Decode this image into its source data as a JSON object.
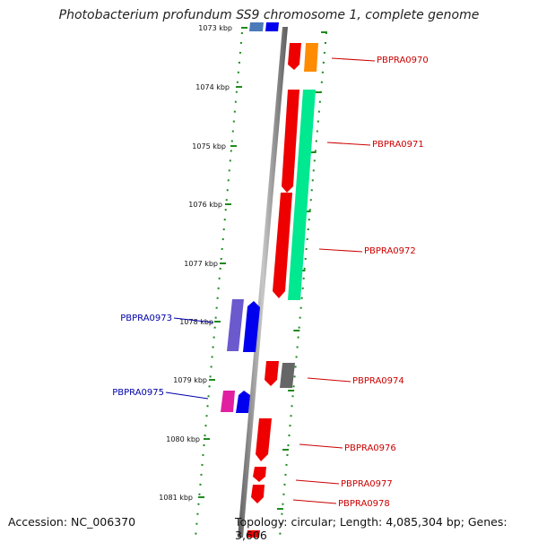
{
  "title": "Photobacterium profundum SS9 chromosome 1, complete genome",
  "footer": {
    "accession": "Accession: NC_006370",
    "topology": "Topology: circular; Length: 4,085,304 bp; Genes: 3,606"
  },
  "ticks": [
    "1073 kbp",
    "1074 kbp",
    "1075 kbp",
    "1076 kbp",
    "1077 kbp",
    "1078 kbp",
    "1079 kbp",
    "1080 kbp",
    "1081 kbp"
  ],
  "genes": [
    {
      "label": "PBPRA0970",
      "strand": "+",
      "color": "#dd0000"
    },
    {
      "label": "PBPRA0971",
      "strand": "+",
      "color": "#dd0000"
    },
    {
      "label": "PBPRA0972",
      "strand": "+",
      "color": "#dd0000"
    },
    {
      "label": "PBPRA0973",
      "strand": "-",
      "color": "#0000cc"
    },
    {
      "label": "PBPRA0974",
      "strand": "+",
      "color": "#dd0000"
    },
    {
      "label": "PBPRA0975",
      "strand": "-",
      "color": "#0000cc"
    },
    {
      "label": "PBPRA0976",
      "strand": "+",
      "color": "#dd0000"
    },
    {
      "label": "PBPRA0977",
      "strand": "+",
      "color": "#dd0000"
    },
    {
      "label": "PBPRA0978",
      "strand": "+",
      "color": "#dd0000"
    }
  ]
}
